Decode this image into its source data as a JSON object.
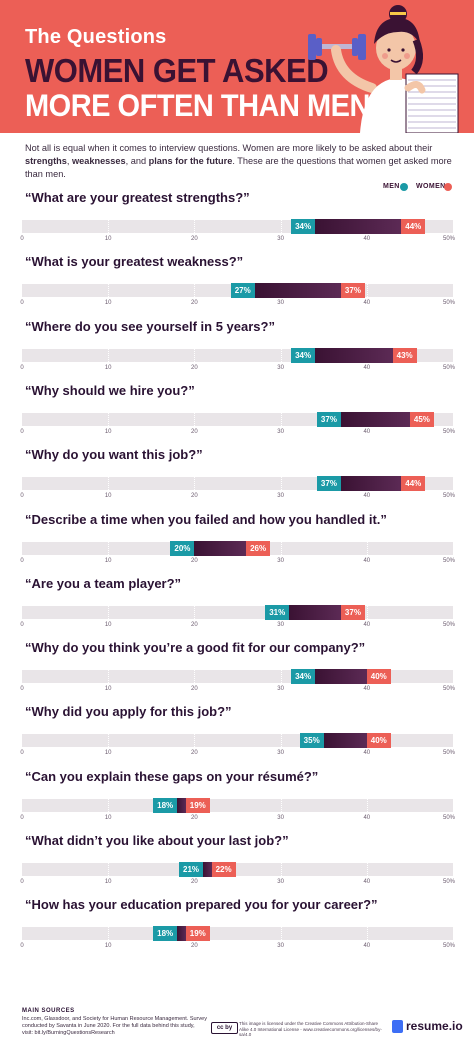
{
  "header": {
    "line1": "The Questions",
    "line2": "WOMEN GET ASKED",
    "line3": "MORE OFTEN THAN MEN"
  },
  "intro": {
    "part1": "Not all is equal when it comes to interview questions. Women are more likely to be asked about their ",
    "bold1": "strengths",
    "sep1": ", ",
    "bold2": "weaknesses",
    "part2": ", and ",
    "bold3": "plans for the future",
    "part3": ". These are the questions that women get asked more than men."
  },
  "legend": {
    "men_label": "MEN",
    "women_label": "WOMEN"
  },
  "colors": {
    "men": "#1b9aa6",
    "women": "#ec5f56",
    "gap": "#3a1233",
    "hero": "#ec5f56"
  },
  "chart_data": {
    "type": "bar",
    "subtype": "dumbbell",
    "xlim": [
      0,
      50
    ],
    "ticks": [
      "0",
      "10",
      "20",
      "30",
      "40",
      "50%"
    ],
    "tick_values": [
      0,
      10,
      20,
      30,
      40,
      50
    ],
    "categories": [
      "“What are your greatest strengths?”",
      "“What is your greatest weakness?”",
      "“Where do you see yourself in 5 years?”",
      "“Why should we hire you?”",
      "“Why do you want this job?”",
      "“Describe a time when you failed and how you handled it.”",
      "“Are you a team player?”",
      "“Why do you think you’re a good fit for our company?”",
      "“Why did you apply for this job?”",
      "“Can you explain these gaps on your résumé?”",
      "“What didn’t you like about your last job?”",
      "“How has your education prepared you for your career?”"
    ],
    "series": [
      {
        "name": "MEN",
        "values": [
          34,
          27,
          34,
          37,
          37,
          20,
          31,
          34,
          35,
          18,
          21,
          18
        ]
      },
      {
        "name": "WOMEN",
        "values": [
          44,
          37,
          43,
          45,
          44,
          26,
          37,
          40,
          40,
          19,
          22,
          19
        ]
      }
    ],
    "labels_men": [
      "34%",
      "27%",
      "34%",
      "37%",
      "37%",
      "20%",
      "31%",
      "34%",
      "35%",
      "18%",
      "21%",
      "18%"
    ],
    "labels_women": [
      "44%",
      "37%",
      "43%",
      "45%",
      "44%",
      "26%",
      "37%",
      "40%",
      "40%",
      "19%",
      "22%",
      "19%"
    ]
  },
  "footer": {
    "sources_heading": "MAIN SOURCES",
    "sources_text": "Inc.com, Glassdoor, and Society for Human Resource Management. Survey conducted by Savanta in June 2020. For the full data behind this study, visit: bit.ly/BurningQuestionsResearch",
    "cc_badge": "cc by",
    "license_text": "This image is licensed under the Creative Commons Attribution-Share Alike 4.0 International License - www.creativecommons.org/licenses/by-sa/4.0",
    "brand": "resume.io"
  }
}
